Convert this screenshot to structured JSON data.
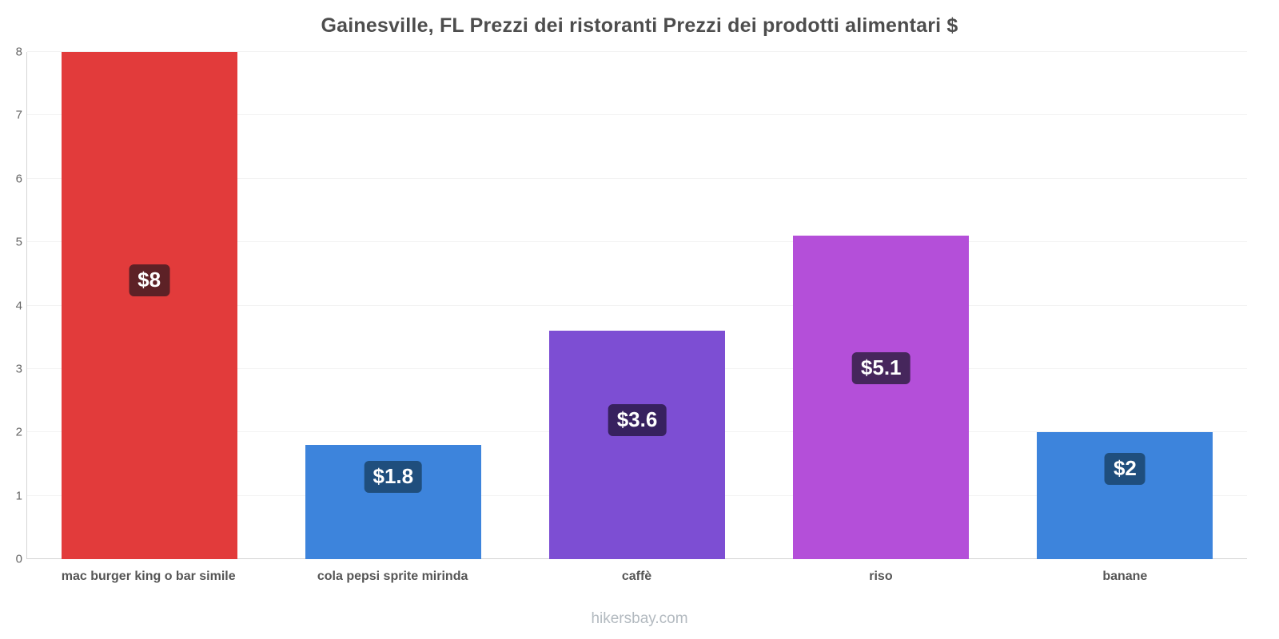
{
  "chart_data": {
    "type": "bar",
    "title": "Gainesville, FL Prezzi dei ristoranti Prezzi dei prodotti alimentari $",
    "categories": [
      "mac burger king o bar simile",
      "cola pepsi sprite mirinda",
      "caffè",
      "riso",
      "banane"
    ],
    "values": [
      8,
      1.8,
      3.6,
      5.1,
      2
    ],
    "labels": [
      "$8",
      "$1.8",
      "$3.6",
      "$5.1",
      "$2"
    ],
    "bar_colors": [
      "#e23b3b",
      "#3d84dc",
      "#7d4ed3",
      "#b44fd9",
      "#3d84dc"
    ],
    "badge_colors": [
      "#5d2126",
      "#1f4e7d",
      "#37215f",
      "#46265c",
      "#1f4e7d"
    ],
    "ylim": [
      0,
      8
    ],
    "ytick_step": 1,
    "grid": true,
    "legend": false,
    "xlabel": "",
    "ylabel": ""
  },
  "footer": {
    "watermark": "hikersbay.com"
  }
}
